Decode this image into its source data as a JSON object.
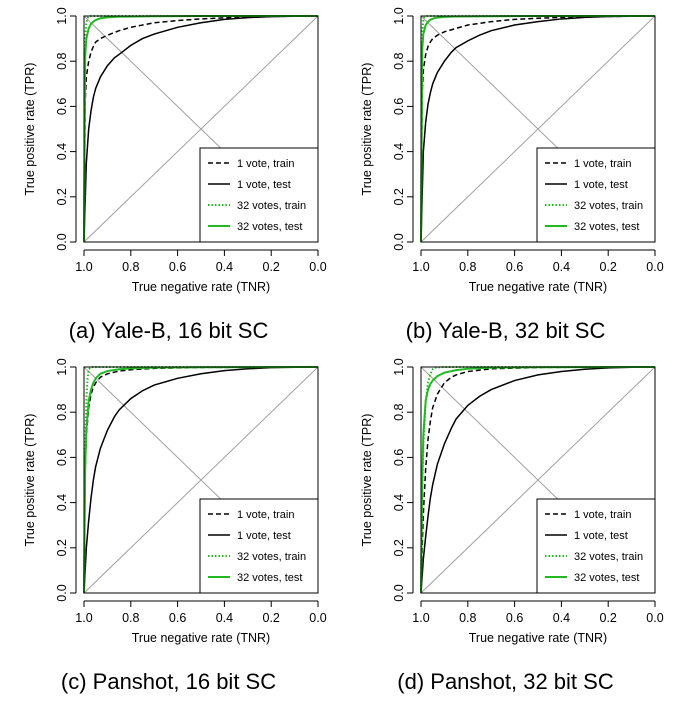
{
  "colors": {
    "train_1vote": "#000000",
    "test_1vote": "#000000",
    "train_32": "#22b822",
    "test_32": "#22b822",
    "diagonal": "#a0a0a0"
  },
  "chart_data": [
    {
      "type": "line",
      "caption": "(a) Yale-B, 16 bit SC",
      "xlabel": "True negative rate (TNR)",
      "ylabel": "True positive rate (TPR)",
      "xlim": [
        1.0,
        0.0
      ],
      "ylim": [
        0.0,
        1.0
      ],
      "x_reversed": true,
      "xticks": [
        "1.0",
        "0.8",
        "0.6",
        "0.4",
        "0.2",
        "0.0"
      ],
      "yticks": [
        "0.0",
        "0.2",
        "0.4",
        "0.6",
        "0.8",
        "1.0"
      ],
      "grid": false,
      "legend_position": "bottom-right",
      "diagonals": true,
      "series": [
        {
          "name": "1 vote, train",
          "style": "dashed",
          "color": "#000000",
          "x": [
            1.0,
            0.995,
            0.99,
            0.98,
            0.97,
            0.96,
            0.95,
            0.93,
            0.9,
            0.85,
            0.8,
            0.7,
            0.6,
            0.5,
            0.4,
            0.3,
            0.2,
            0.1,
            0.0
          ],
          "y": [
            0.0,
            0.62,
            0.73,
            0.8,
            0.84,
            0.865,
            0.885,
            0.9,
            0.915,
            0.935,
            0.95,
            0.97,
            0.98,
            0.987,
            0.992,
            0.996,
            0.998,
            0.999,
            1.0
          ]
        },
        {
          "name": "1 vote, test",
          "style": "solid",
          "color": "#000000",
          "x": [
            1.0,
            0.99,
            0.98,
            0.97,
            0.96,
            0.95,
            0.93,
            0.9,
            0.87,
            0.85,
            0.8,
            0.75,
            0.7,
            0.6,
            0.5,
            0.4,
            0.3,
            0.2,
            0.1,
            0.0
          ],
          "y": [
            0.0,
            0.35,
            0.5,
            0.58,
            0.64,
            0.68,
            0.73,
            0.78,
            0.815,
            0.83,
            0.87,
            0.9,
            0.92,
            0.95,
            0.97,
            0.985,
            0.993,
            0.997,
            0.999,
            1.0
          ]
        },
        {
          "name": "32 votes, train",
          "style": "dotted",
          "color": "#22b822",
          "x": [
            1.0,
            0.995,
            0.99,
            0.985,
            0.98,
            0.97,
            0.9,
            0.5,
            0.0
          ],
          "y": [
            0.0,
            0.9,
            0.97,
            0.99,
            0.998,
            1.0,
            1.0,
            1.0,
            1.0
          ]
        },
        {
          "name": "32 votes, test",
          "style": "solid",
          "color": "#22b822",
          "x": [
            1.0,
            0.995,
            0.99,
            0.98,
            0.97,
            0.96,
            0.95,
            0.93,
            0.9,
            0.85,
            0.7,
            0.5,
            0.0
          ],
          "y": [
            0.0,
            0.82,
            0.9,
            0.945,
            0.965,
            0.975,
            0.982,
            0.99,
            0.994,
            0.997,
            0.999,
            1.0,
            1.0
          ]
        }
      ]
    },
    {
      "type": "line",
      "caption": "(b) Yale-B, 32 bit SC",
      "xlabel": "True negative rate (TNR)",
      "ylabel": "True positive rate (TPR)",
      "xlim": [
        1.0,
        0.0
      ],
      "ylim": [
        0.0,
        1.0
      ],
      "x_reversed": true,
      "xticks": [
        "1.0",
        "0.8",
        "0.6",
        "0.4",
        "0.2",
        "0.0"
      ],
      "yticks": [
        "0.0",
        "0.2",
        "0.4",
        "0.6",
        "0.8",
        "1.0"
      ],
      "grid": false,
      "legend_position": "bottom-right",
      "diagonals": true,
      "series": [
        {
          "name": "1 vote, train",
          "style": "dashed",
          "color": "#000000",
          "x": [
            1.0,
            0.995,
            0.99,
            0.98,
            0.97,
            0.96,
            0.95,
            0.93,
            0.9,
            0.85,
            0.8,
            0.7,
            0.6,
            0.5,
            0.4,
            0.3,
            0.2,
            0.1,
            0.0
          ],
          "y": [
            0.0,
            0.66,
            0.76,
            0.83,
            0.865,
            0.885,
            0.9,
            0.915,
            0.93,
            0.945,
            0.96,
            0.975,
            0.985,
            0.99,
            0.994,
            0.997,
            0.998,
            0.999,
            1.0
          ]
        },
        {
          "name": "1 vote, test",
          "style": "solid",
          "color": "#000000",
          "x": [
            1.0,
            0.99,
            0.98,
            0.97,
            0.96,
            0.95,
            0.93,
            0.9,
            0.87,
            0.85,
            0.8,
            0.75,
            0.7,
            0.6,
            0.5,
            0.4,
            0.3,
            0.2,
            0.1,
            0.0
          ],
          "y": [
            0.0,
            0.4,
            0.53,
            0.61,
            0.66,
            0.7,
            0.75,
            0.8,
            0.84,
            0.86,
            0.89,
            0.915,
            0.935,
            0.96,
            0.975,
            0.987,
            0.994,
            0.998,
            0.999,
            1.0
          ]
        },
        {
          "name": "32 votes, train",
          "style": "dotted",
          "color": "#22b822",
          "x": [
            1.0,
            0.995,
            0.99,
            0.985,
            0.98,
            0.97,
            0.9,
            0.5,
            0.0
          ],
          "y": [
            0.0,
            0.92,
            0.98,
            0.995,
            0.999,
            1.0,
            1.0,
            1.0,
            1.0
          ]
        },
        {
          "name": "32 votes, test",
          "style": "solid",
          "color": "#22b822",
          "x": [
            1.0,
            0.995,
            0.99,
            0.98,
            0.97,
            0.96,
            0.95,
            0.93,
            0.9,
            0.85,
            0.7,
            0.5,
            0.0
          ],
          "y": [
            0.0,
            0.85,
            0.92,
            0.96,
            0.975,
            0.983,
            0.988,
            0.993,
            0.996,
            0.998,
            0.999,
            1.0,
            1.0
          ]
        }
      ]
    },
    {
      "type": "line",
      "caption": "(c) Panshot, 16 bit SC",
      "xlabel": "True negative rate (TNR)",
      "ylabel": "True positive rate (TPR)",
      "xlim": [
        1.0,
        0.0
      ],
      "ylim": [
        0.0,
        1.0
      ],
      "x_reversed": true,
      "xticks": [
        "1.0",
        "0.8",
        "0.6",
        "0.4",
        "0.2",
        "0.0"
      ],
      "yticks": [
        "0.0",
        "0.2",
        "0.4",
        "0.6",
        "0.8",
        "1.0"
      ],
      "grid": false,
      "legend_position": "bottom-right",
      "diagonals": true,
      "series": [
        {
          "name": "1 vote, train",
          "style": "dashed",
          "color": "#000000",
          "x": [
            1.0,
            0.995,
            0.99,
            0.98,
            0.97,
            0.96,
            0.95,
            0.93,
            0.9,
            0.85,
            0.8,
            0.7,
            0.5,
            0.3,
            0.0
          ],
          "y": [
            0.0,
            0.55,
            0.7,
            0.82,
            0.88,
            0.91,
            0.93,
            0.955,
            0.97,
            0.982,
            0.988,
            0.994,
            0.998,
            0.999,
            1.0
          ]
        },
        {
          "name": "1 vote, test",
          "style": "solid",
          "color": "#000000",
          "x": [
            1.0,
            0.99,
            0.98,
            0.97,
            0.96,
            0.95,
            0.93,
            0.9,
            0.87,
            0.85,
            0.8,
            0.75,
            0.7,
            0.6,
            0.5,
            0.4,
            0.3,
            0.2,
            0.1,
            0.0
          ],
          "y": [
            0.0,
            0.2,
            0.32,
            0.42,
            0.5,
            0.56,
            0.64,
            0.72,
            0.78,
            0.81,
            0.86,
            0.895,
            0.92,
            0.95,
            0.97,
            0.984,
            0.992,
            0.997,
            0.999,
            1.0
          ]
        },
        {
          "name": "32 votes, train",
          "style": "dotted",
          "color": "#22b822",
          "x": [
            1.0,
            0.995,
            0.99,
            0.985,
            0.98,
            0.975,
            0.97,
            0.96,
            0.9,
            0.5,
            0.0
          ],
          "y": [
            0.0,
            0.6,
            0.85,
            0.95,
            0.985,
            0.995,
            0.999,
            1.0,
            1.0,
            1.0,
            1.0
          ]
        },
        {
          "name": "32 votes, test",
          "style": "solid",
          "color": "#22b822",
          "x": [
            1.0,
            0.995,
            0.99,
            0.98,
            0.97,
            0.96,
            0.95,
            0.93,
            0.9,
            0.85,
            0.8,
            0.7,
            0.5,
            0.0
          ],
          "y": [
            0.0,
            0.55,
            0.72,
            0.85,
            0.9,
            0.93,
            0.95,
            0.97,
            0.982,
            0.99,
            0.994,
            0.997,
            0.999,
            1.0
          ]
        }
      ]
    },
    {
      "type": "line",
      "caption": "(d) Panshot, 32 bit SC",
      "xlabel": "True negative rate (TNR)",
      "ylabel": "True positive rate (TPR)",
      "xlim": [
        1.0,
        0.0
      ],
      "ylim": [
        0.0,
        1.0
      ],
      "x_reversed": true,
      "xticks": [
        "1.0",
        "0.8",
        "0.6",
        "0.4",
        "0.2",
        "0.0"
      ],
      "yticks": [
        "0.0",
        "0.2",
        "0.4",
        "0.6",
        "0.8",
        "1.0"
      ],
      "grid": false,
      "legend_position": "bottom-right",
      "diagonals": true,
      "series": [
        {
          "name": "1 vote, train",
          "style": "dashed",
          "color": "#000000",
          "x": [
            1.0,
            0.995,
            0.99,
            0.98,
            0.97,
            0.96,
            0.95,
            0.93,
            0.9,
            0.87,
            0.85,
            0.8,
            0.7,
            0.5,
            0.3,
            0.0
          ],
          "y": [
            0.0,
            0.2,
            0.35,
            0.55,
            0.68,
            0.76,
            0.82,
            0.88,
            0.93,
            0.955,
            0.965,
            0.98,
            0.992,
            0.998,
            0.999,
            1.0
          ]
        },
        {
          "name": "1 vote, test",
          "style": "solid",
          "color": "#000000",
          "x": [
            1.0,
            0.99,
            0.98,
            0.97,
            0.96,
            0.95,
            0.93,
            0.9,
            0.87,
            0.85,
            0.8,
            0.75,
            0.7,
            0.6,
            0.5,
            0.4,
            0.3,
            0.2,
            0.1,
            0.0
          ],
          "y": [
            0.0,
            0.15,
            0.25,
            0.34,
            0.42,
            0.48,
            0.57,
            0.66,
            0.73,
            0.77,
            0.83,
            0.87,
            0.9,
            0.94,
            0.965,
            0.98,
            0.99,
            0.996,
            0.999,
            1.0
          ]
        },
        {
          "name": "32 votes, train",
          "style": "dotted",
          "color": "#22b822",
          "x": [
            1.0,
            0.995,
            0.99,
            0.98,
            0.97,
            0.96,
            0.95,
            0.94,
            0.9,
            0.5,
            0.0
          ],
          "y": [
            0.0,
            0.45,
            0.65,
            0.85,
            0.93,
            0.97,
            0.99,
            0.997,
            1.0,
            1.0,
            1.0
          ]
        },
        {
          "name": "32 votes, test",
          "style": "solid",
          "color": "#22b822",
          "x": [
            1.0,
            0.995,
            0.99,
            0.98,
            0.97,
            0.96,
            0.95,
            0.93,
            0.9,
            0.85,
            0.8,
            0.7,
            0.5,
            0.0
          ],
          "y": [
            0.0,
            0.5,
            0.7,
            0.85,
            0.9,
            0.925,
            0.94,
            0.96,
            0.975,
            0.986,
            0.992,
            0.997,
            0.999,
            1.0
          ]
        }
      ]
    }
  ]
}
